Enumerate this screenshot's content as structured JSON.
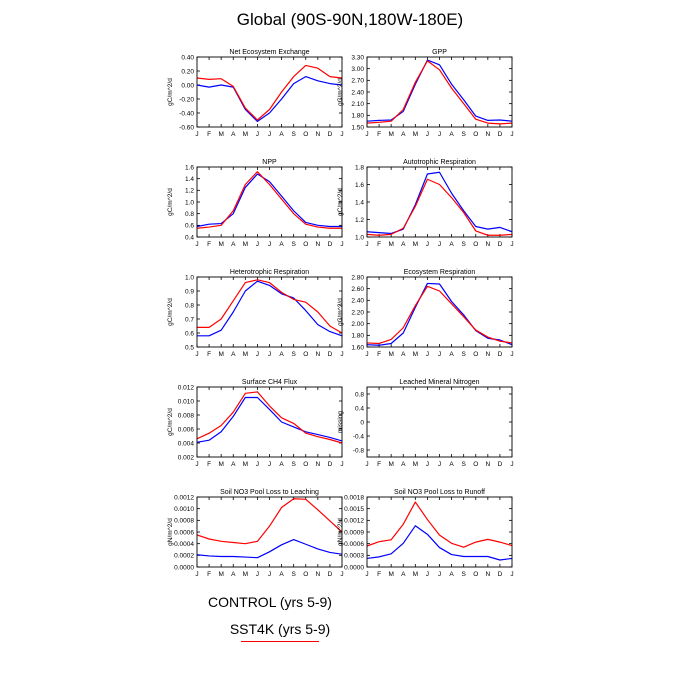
{
  "title": "Global (90S-90N,180W-180E)",
  "legend": {
    "control_label": "CONTROL (yrs 5-9)",
    "sst4k_label": "SST4K (yrs 5-9)",
    "control_color": "#0000ff",
    "sst4k_color": "#ff0000"
  },
  "chart_data": [
    {
      "type": "line",
      "title": "Net Ecosystem Exchange",
      "xlabel": "",
      "ylabel": "gC/m^2/d",
      "categories": [
        "J",
        "F",
        "M",
        "A",
        "M",
        "J",
        "J",
        "A",
        "S",
        "O",
        "N",
        "D",
        "J"
      ],
      "ylim": [
        -0.6,
        0.4
      ],
      "yticks": [
        -0.6,
        -0.4,
        -0.2,
        0.0,
        0.2,
        0.4
      ],
      "ytick_labels": [
        "-0.60",
        "-0.40",
        "-0.20",
        "0.00",
        "0.20",
        "0.40"
      ],
      "series": [
        {
          "name": "CONTROL",
          "color": "#0000ff",
          "values": [
            0.0,
            -0.03,
            0.0,
            -0.03,
            -0.35,
            -0.52,
            -0.4,
            -0.2,
            0.02,
            0.12,
            0.06,
            0.02,
            0.0
          ]
        },
        {
          "name": "SST4K",
          "color": "#ff0000",
          "values": [
            0.1,
            0.08,
            0.09,
            -0.02,
            -0.33,
            -0.5,
            -0.35,
            -0.1,
            0.12,
            0.28,
            0.24,
            0.12,
            0.1
          ]
        }
      ]
    },
    {
      "type": "line",
      "title": "GPP",
      "xlabel": "",
      "ylabel": "gC/m^2/d",
      "categories": [
        "J",
        "F",
        "M",
        "A",
        "M",
        "J",
        "J",
        "A",
        "S",
        "O",
        "N",
        "D",
        "J"
      ],
      "ylim": [
        1.5,
        3.3
      ],
      "yticks": [
        1.5,
        1.8,
        2.1,
        2.4,
        2.7,
        3.0,
        3.3
      ],
      "ytick_labels": [
        "1.50",
        "1.80",
        "2.10",
        "2.40",
        "2.70",
        "3.00",
        "3.30"
      ],
      "series": [
        {
          "name": "CONTROL",
          "color": "#0000ff",
          "values": [
            1.65,
            1.67,
            1.68,
            1.9,
            2.6,
            3.22,
            3.1,
            2.6,
            2.2,
            1.78,
            1.67,
            1.68,
            1.65
          ]
        },
        {
          "name": "SST4K",
          "color": "#ff0000",
          "values": [
            1.6,
            1.62,
            1.65,
            1.95,
            2.65,
            3.2,
            2.97,
            2.5,
            2.1,
            1.7,
            1.6,
            1.58,
            1.6
          ]
        }
      ]
    },
    {
      "type": "line",
      "title": "NPP",
      "xlabel": "",
      "ylabel": "gC/m^2/d",
      "categories": [
        "J",
        "F",
        "M",
        "A",
        "M",
        "J",
        "J",
        "A",
        "S",
        "O",
        "N",
        "D",
        "J"
      ],
      "ylim": [
        0.4,
        1.6
      ],
      "yticks": [
        0.4,
        0.6,
        0.8,
        1.0,
        1.2,
        1.4,
        1.6
      ],
      "ytick_labels": [
        "0.4",
        "0.6",
        "0.8",
        "1.0",
        "1.2",
        "1.4",
        "1.6"
      ],
      "series": [
        {
          "name": "CONTROL",
          "color": "#0000ff",
          "values": [
            0.58,
            0.62,
            0.63,
            0.8,
            1.25,
            1.48,
            1.35,
            1.1,
            0.85,
            0.65,
            0.6,
            0.58,
            0.58
          ]
        },
        {
          "name": "SST4K",
          "color": "#ff0000",
          "values": [
            0.55,
            0.57,
            0.6,
            0.85,
            1.3,
            1.52,
            1.3,
            1.05,
            0.8,
            0.62,
            0.57,
            0.55,
            0.55
          ]
        }
      ]
    },
    {
      "type": "line",
      "title": "Autotrophic Respiration",
      "xlabel": "",
      "ylabel": "gC/m^2/d",
      "categories": [
        "J",
        "F",
        "M",
        "A",
        "M",
        "J",
        "J",
        "A",
        "S",
        "O",
        "N",
        "D",
        "J"
      ],
      "ylim": [
        1.0,
        1.8
      ],
      "yticks": [
        1.0,
        1.2,
        1.4,
        1.6,
        1.8
      ],
      "ytick_labels": [
        "1.0",
        "1.2",
        "1.4",
        "1.6",
        "1.8"
      ],
      "series": [
        {
          "name": "CONTROL",
          "color": "#0000ff",
          "values": [
            1.06,
            1.05,
            1.04,
            1.09,
            1.37,
            1.72,
            1.74,
            1.5,
            1.3,
            1.12,
            1.09,
            1.11,
            1.06
          ]
        },
        {
          "name": "SST4K",
          "color": "#ff0000",
          "values": [
            1.03,
            1.02,
            1.03,
            1.1,
            1.35,
            1.66,
            1.6,
            1.45,
            1.28,
            1.07,
            1.02,
            1.02,
            1.03
          ]
        }
      ]
    },
    {
      "type": "line",
      "title": "Heterotrophic Respiration",
      "xlabel": "",
      "ylabel": "gC/m^2/d",
      "categories": [
        "J",
        "F",
        "M",
        "A",
        "M",
        "J",
        "J",
        "A",
        "S",
        "O",
        "N",
        "D",
        "J"
      ],
      "ylim": [
        0.5,
        1.0
      ],
      "yticks": [
        0.5,
        0.6,
        0.7,
        0.8,
        0.9,
        1.0
      ],
      "ytick_labels": [
        "0.5",
        "0.6",
        "0.7",
        "0.8",
        "0.9",
        "1.0"
      ],
      "series": [
        {
          "name": "CONTROL",
          "color": "#0000ff",
          "values": [
            0.58,
            0.58,
            0.62,
            0.75,
            0.9,
            0.97,
            0.94,
            0.88,
            0.85,
            0.76,
            0.66,
            0.61,
            0.58
          ]
        },
        {
          "name": "SST4K",
          "color": "#ff0000",
          "values": [
            0.64,
            0.64,
            0.7,
            0.83,
            0.96,
            0.98,
            0.96,
            0.89,
            0.84,
            0.82,
            0.75,
            0.65,
            0.6
          ]
        }
      ]
    },
    {
      "type": "line",
      "title": "Ecosystem Respiration",
      "xlabel": "",
      "ylabel": "gC/m^2/d",
      "categories": [
        "J",
        "F",
        "M",
        "A",
        "M",
        "J",
        "J",
        "A",
        "S",
        "O",
        "N",
        "D",
        "J"
      ],
      "ylim": [
        1.6,
        2.8
      ],
      "yticks": [
        1.6,
        1.8,
        2.0,
        2.2,
        2.4,
        2.6,
        2.8
      ],
      "ytick_labels": [
        "1.60",
        "1.80",
        "2.00",
        "2.20",
        "2.40",
        "2.60",
        "2.80"
      ],
      "series": [
        {
          "name": "CONTROL",
          "color": "#0000ff",
          "values": [
            1.64,
            1.63,
            1.66,
            1.84,
            2.28,
            2.69,
            2.68,
            2.38,
            2.15,
            1.88,
            1.75,
            1.72,
            1.64
          ]
        },
        {
          "name": "SST4K",
          "color": "#ff0000",
          "values": [
            1.67,
            1.66,
            1.73,
            1.93,
            2.31,
            2.64,
            2.56,
            2.34,
            2.12,
            1.89,
            1.77,
            1.7,
            1.67
          ]
        }
      ]
    },
    {
      "type": "line",
      "title": "Surface CH4 Flux",
      "xlabel": "",
      "ylabel": "gC/m^2/d",
      "categories": [
        "J",
        "F",
        "M",
        "A",
        "M",
        "J",
        "J",
        "A",
        "S",
        "O",
        "N",
        "D",
        "J"
      ],
      "ylim": [
        0.002,
        0.012
      ],
      "yticks": [
        0.002,
        0.004,
        0.006,
        0.008,
        0.01,
        0.012
      ],
      "ytick_labels": [
        "0.002",
        "0.004",
        "0.006",
        "0.008",
        "0.010",
        "0.012"
      ],
      "series": [
        {
          "name": "CONTROL",
          "color": "#0000ff",
          "values": [
            0.0041,
            0.0044,
            0.0056,
            0.0078,
            0.0105,
            0.0105,
            0.0088,
            0.007,
            0.0063,
            0.0056,
            0.0052,
            0.0048,
            0.0043
          ]
        },
        {
          "name": "SST4K",
          "color": "#ff0000",
          "values": [
            0.0046,
            0.0054,
            0.0065,
            0.0084,
            0.0111,
            0.0113,
            0.0093,
            0.0076,
            0.0068,
            0.0054,
            0.0049,
            0.0045,
            0.004
          ]
        }
      ]
    },
    {
      "type": "line",
      "title": "Leached Mineral Nitrogen",
      "xlabel": "",
      "ylabel": "missing",
      "categories": [
        "J",
        "F",
        "M",
        "A",
        "M",
        "J",
        "J",
        "A",
        "S",
        "O",
        "N",
        "D",
        "J"
      ],
      "ylim": [
        -1.0,
        1.0
      ],
      "yticks": [
        -0.8,
        -0.4,
        0.0,
        0.4,
        0.8
      ],
      "ytick_labels": [
        "-0.8",
        "-0.4",
        "0",
        "0.4",
        "0.8"
      ],
      "series": []
    },
    {
      "type": "line",
      "title": "Soil NO3 Pool Loss to Leaching",
      "xlabel": "",
      "ylabel": "gN/m^2/d",
      "categories": [
        "J",
        "F",
        "M",
        "A",
        "M",
        "J",
        "J",
        "A",
        "S",
        "O",
        "N",
        "D",
        "J"
      ],
      "ylim": [
        0.0,
        0.0012
      ],
      "yticks": [
        0.0,
        0.0002,
        0.0004,
        0.0006,
        0.0008,
        0.001,
        0.0012
      ],
      "ytick_labels": [
        "0.0000",
        "0.0002",
        "0.0004",
        "0.0006",
        "0.0008",
        "0.0010",
        "0.0012"
      ],
      "series": [
        {
          "name": "CONTROL",
          "color": "#0000ff",
          "values": [
            0.00021,
            0.00019,
            0.00018,
            0.00018,
            0.00017,
            0.00016,
            0.00026,
            0.00038,
            0.00047,
            0.00039,
            0.00031,
            0.00025,
            0.00022
          ]
        },
        {
          "name": "SST4K",
          "color": "#ff0000",
          "values": [
            0.00055,
            0.00048,
            0.00044,
            0.00042,
            0.0004,
            0.00044,
            0.0007,
            0.00102,
            0.00117,
            0.00116,
            0.00098,
            0.00079,
            0.0006
          ]
        }
      ]
    },
    {
      "type": "line",
      "title": "Soil NO3 Pool Loss to Runoff",
      "xlabel": "",
      "ylabel": "gN/m^2/d",
      "categories": [
        "J",
        "F",
        "M",
        "A",
        "M",
        "J",
        "J",
        "A",
        "S",
        "O",
        "N",
        "D",
        "J"
      ],
      "ylim": [
        0.0,
        0.0018
      ],
      "yticks": [
        0.0,
        0.0003,
        0.0006,
        0.0009,
        0.0012,
        0.0015,
        0.0018
      ],
      "ytick_labels": [
        "0.0000",
        "0.0003",
        "0.0006",
        "0.0009",
        "0.0012",
        "0.0015",
        "0.0018"
      ],
      "series": [
        {
          "name": "CONTROL",
          "color": "#0000ff",
          "values": [
            0.00022,
            0.00026,
            0.00034,
            0.00061,
            0.00106,
            0.00084,
            0.0005,
            0.00032,
            0.00027,
            0.00027,
            0.00027,
            0.00018,
            0.00022
          ]
        },
        {
          "name": "SST4K",
          "color": "#ff0000",
          "values": [
            0.00054,
            0.00065,
            0.0007,
            0.0011,
            0.00167,
            0.00122,
            0.00082,
            0.00061,
            0.00051,
            0.00064,
            0.00071,
            0.00064,
            0.00055
          ]
        }
      ]
    }
  ]
}
